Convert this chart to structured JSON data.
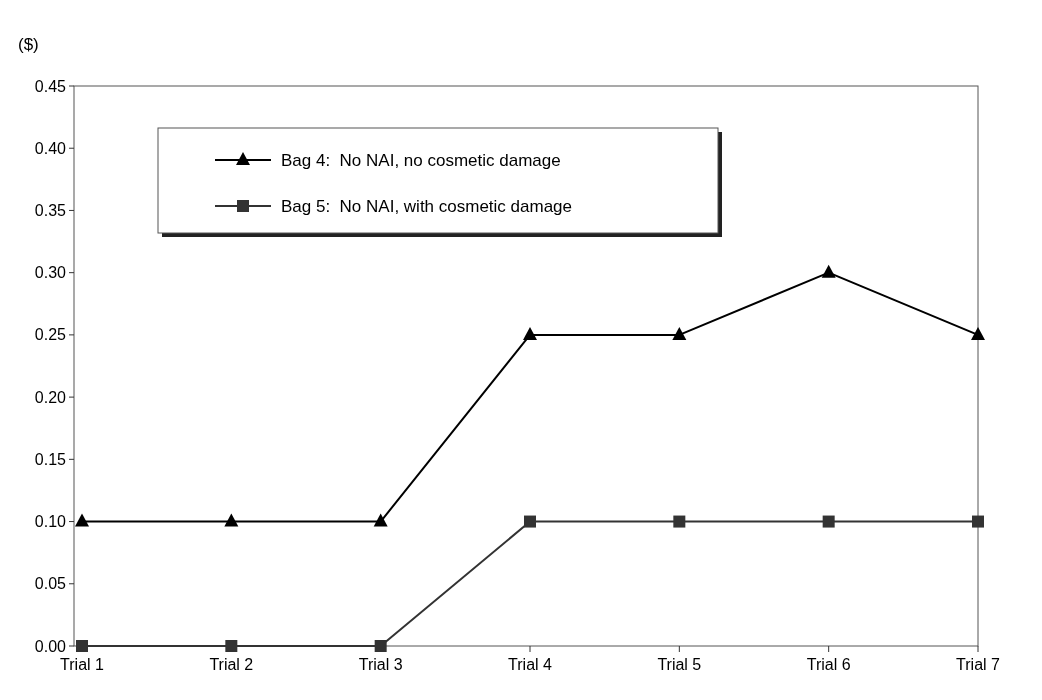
{
  "chart_data": {
    "type": "line",
    "ylabel": "($)",
    "categories": [
      "Trial 1",
      "Trial 2",
      "Trial 3",
      "Trial 4",
      "Trial 5",
      "Trial 6",
      "Trial 7"
    ],
    "series": [
      {
        "name": "Bag 4:  No NAI, no cosmetic damage",
        "color": "#000000",
        "marker": "triangle",
        "values": [
          0.1,
          0.1,
          0.1,
          0.25,
          0.25,
          0.3,
          0.25
        ]
      },
      {
        "name": "Bag 5:  No NAI, with cosmetic damage",
        "color": "#333333",
        "marker": "square",
        "values": [
          0.0,
          0.0,
          0.0,
          0.1,
          0.1,
          0.1,
          0.1
        ]
      }
    ],
    "ylim": [
      0,
      0.45
    ],
    "yticks": [
      {
        "value": 0,
        "label": "0.00"
      },
      {
        "value": 0.05,
        "label": "0.05"
      },
      {
        "value": 0.1,
        "label": "0.10"
      },
      {
        "value": 0.15,
        "label": "0.15"
      },
      {
        "value": 0.2,
        "label": "0.20"
      },
      {
        "value": 0.25,
        "label": "0.25"
      },
      {
        "value": 0.3,
        "label": "0.30"
      },
      {
        "value": 0.35,
        "label": "0.35"
      },
      {
        "value": 0.4,
        "label": "0.40"
      },
      {
        "value": 0.45,
        "label": "0.45"
      }
    ],
    "grid": false,
    "legend": "top left",
    "line_style": "solid"
  }
}
